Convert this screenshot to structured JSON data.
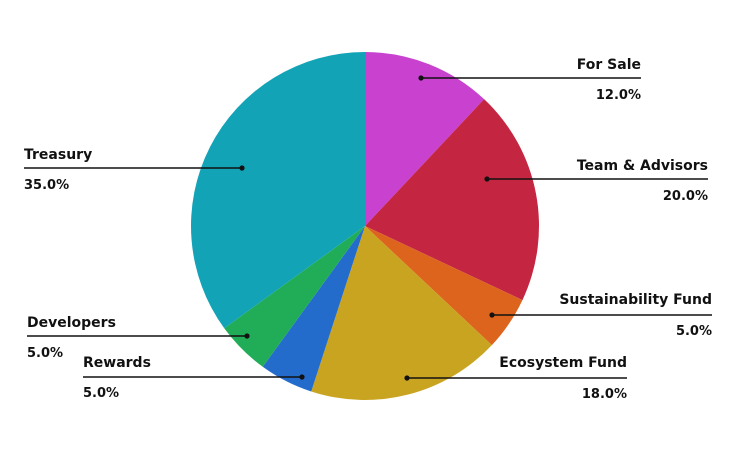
{
  "chart_data": {
    "type": "pie",
    "title": "",
    "legend": "none",
    "slices": [
      {
        "label": "For Sale",
        "value_label": "12.0%",
        "value": 12.0,
        "color": "#c842cf"
      },
      {
        "label": "Team & Advisors",
        "value_label": "20.0%",
        "value": 20.0,
        "color": "#c42641"
      },
      {
        "label": "Sustainability Fund",
        "value_label": "5.0%",
        "value": 5.0,
        "color": "#dd641d"
      },
      {
        "label": "Ecosystem Fund",
        "value_label": "18.0%",
        "value": 18.0,
        "color": "#c9a421"
      },
      {
        "label": "Rewards",
        "value_label": "5.0%",
        "value": 5.0,
        "color": "#236ccc"
      },
      {
        "label": "Developers",
        "value_label": "5.0%",
        "value": 5.0,
        "color": "#21ad57"
      },
      {
        "label": "Treasury",
        "value_label": "35.0%",
        "value": 35.0,
        "color": "#12a3b7"
      }
    ]
  }
}
